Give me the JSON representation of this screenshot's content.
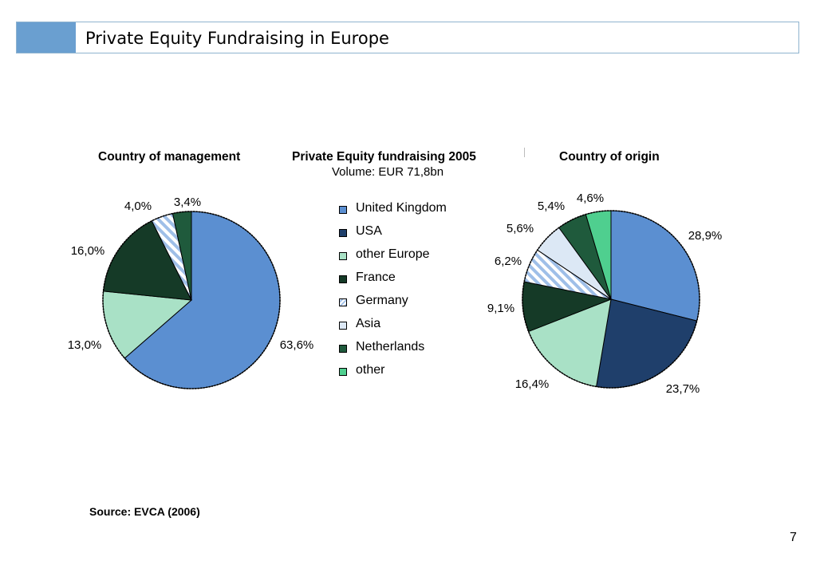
{
  "slide": {
    "title": "Private Equity Fundraising in Europe",
    "source": "Source: EVCA (2006)",
    "page_number": "7"
  },
  "colors": {
    "title_accent": "#6a9fd0",
    "title_border": "#8fb3cf"
  },
  "categories": [
    {
      "name": "United Kingdom",
      "color": "#5b8fd1",
      "pattern": "solid"
    },
    {
      "name": "USA",
      "color": "#1f3f6b",
      "pattern": "solid"
    },
    {
      "name": "other Europe",
      "color": "#a9e1c6",
      "pattern": "solid"
    },
    {
      "name": "France",
      "color": "#153a27",
      "pattern": "solid"
    },
    {
      "name": "Germany",
      "color": "#9fbfe8",
      "pattern": "diagonal-stripes"
    },
    {
      "name": "Asia",
      "color": "#dce8f5",
      "pattern": "solid"
    },
    {
      "name": "Netherlands",
      "color": "#1f5a3c",
      "pattern": "solid"
    },
    {
      "name": "other",
      "color": "#4fcf8f",
      "pattern": "solid"
    }
  ],
  "center": {
    "heading": "Private Equity fundraising 2005",
    "subheading": "Volume: EUR 71,8bn"
  },
  "chart_data": [
    {
      "type": "pie",
      "title": "Country of management",
      "slices": [
        {
          "category": "United Kingdom",
          "value": 63.6,
          "label": "63,6%"
        },
        {
          "category": "other Europe",
          "value": 13.0,
          "label": "13,0%"
        },
        {
          "category": "France",
          "value": 16.0,
          "label": "16,0%"
        },
        {
          "category": "Germany",
          "value": 4.0,
          "label": "4,0%"
        },
        {
          "category": "Netherlands",
          "value": 3.4,
          "label": "3,4%"
        }
      ]
    },
    {
      "type": "pie",
      "title": "Country of origin",
      "slices": [
        {
          "category": "United Kingdom",
          "value": 28.9,
          "label": "28,9%"
        },
        {
          "category": "USA",
          "value": 23.7,
          "label": "23,7%"
        },
        {
          "category": "other Europe",
          "value": 16.4,
          "label": "16,4%"
        },
        {
          "category": "France",
          "value": 9.1,
          "label": "9,1%"
        },
        {
          "category": "Germany",
          "value": 6.2,
          "label": "6,2%"
        },
        {
          "category": "Asia",
          "value": 5.6,
          "label": "5,6%"
        },
        {
          "category": "Netherlands",
          "value": 5.4,
          "label": "5,4%"
        },
        {
          "category": "other",
          "value": 4.6,
          "label": "4,6%"
        }
      ]
    }
  ]
}
